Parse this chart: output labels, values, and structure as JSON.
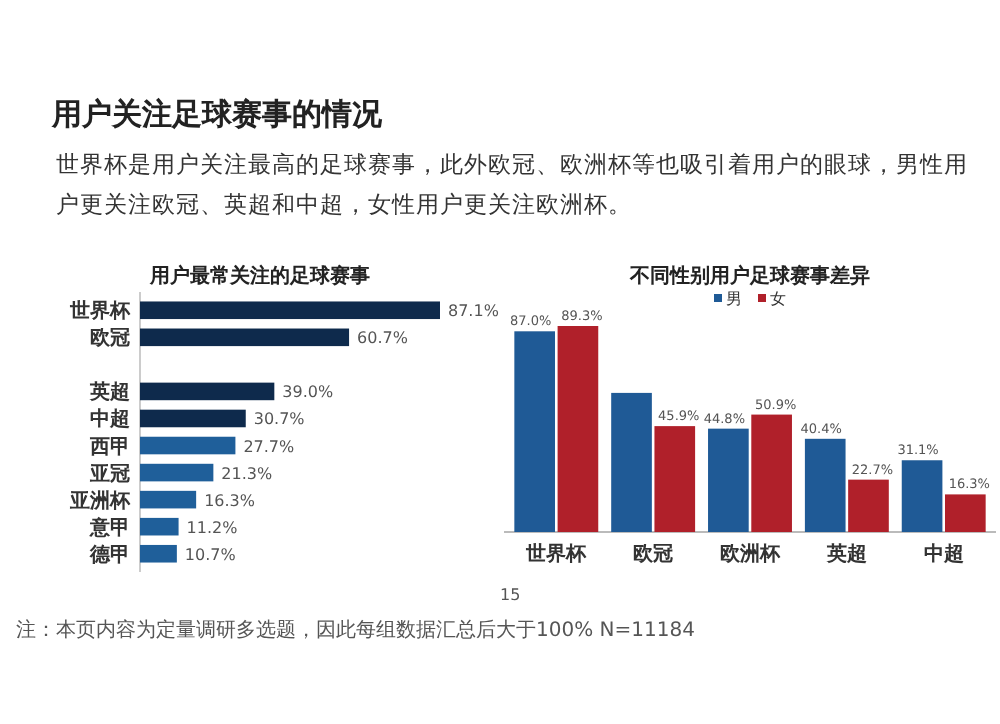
{
  "chart_data": [
    {
      "type": "other",
      "title": "用户关注足球赛事的情况",
      "subtitle": "世界杯是用户关注最高的足球赛事，此外欧冠、欧洲杯等也吸引着用户的眼球，男性用户更关注欧冠、英超和中超，女性用户更关注欧洲杯。",
      "annotations": [
        "注：本页内容为定量调研多选题，因此每组数据汇总后大于100%  N=11184",
        "15"
      ]
    },
    {
      "type": "bar",
      "orientation": "horizontal",
      "title": "用户最常关注的足球赛事",
      "categories": [
        "世界杯",
        "欧冠",
        null,
        "英超",
        "中超",
        "西甲",
        "亚冠",
        "亚洲杯",
        "意甲",
        "德甲"
      ],
      "values": [
        87.1,
        60.7,
        null,
        39.0,
        30.7,
        27.7,
        21.3,
        16.3,
        11.2,
        10.7
      ],
      "value_labels": [
        "87.1%",
        "60.7%",
        null,
        "39.0%",
        "30.7%",
        "27.7%",
        "21.3%",
        "16.3%",
        "11.2%",
        "10.7%"
      ],
      "colors": [
        "#0e2a4c",
        "#0e2a4c",
        null,
        "#0e2a4c",
        "#0e2a4c",
        "#1f5f9a",
        "#1f5f9a",
        "#1f5f9a",
        "#1f5f9a",
        "#1f5f9a"
      ]
    },
    {
      "type": "bar",
      "title": "不同性别用户足球赛事差异",
      "categories": [
        "世界杯",
        "欧冠",
        "欧洲杯",
        "英超",
        "中超"
      ],
      "legend": "top",
      "series": [
        {
          "name": "男",
          "color": "#1f5a96",
          "values": [
            87.0,
            60.3,
            44.8,
            40.4,
            31.1
          ],
          "value_labels": [
            "87.0%",
            null,
            "44.8%",
            "40.4%",
            "31.1%"
          ]
        },
        {
          "name": "女",
          "color": "#b0202a",
          "values": [
            89.3,
            45.9,
            50.9,
            22.7,
            16.3
          ],
          "value_labels": [
            "89.3%",
            "45.9%",
            "50.9%",
            "22.7%",
            "16.3%"
          ]
        }
      ]
    }
  ]
}
